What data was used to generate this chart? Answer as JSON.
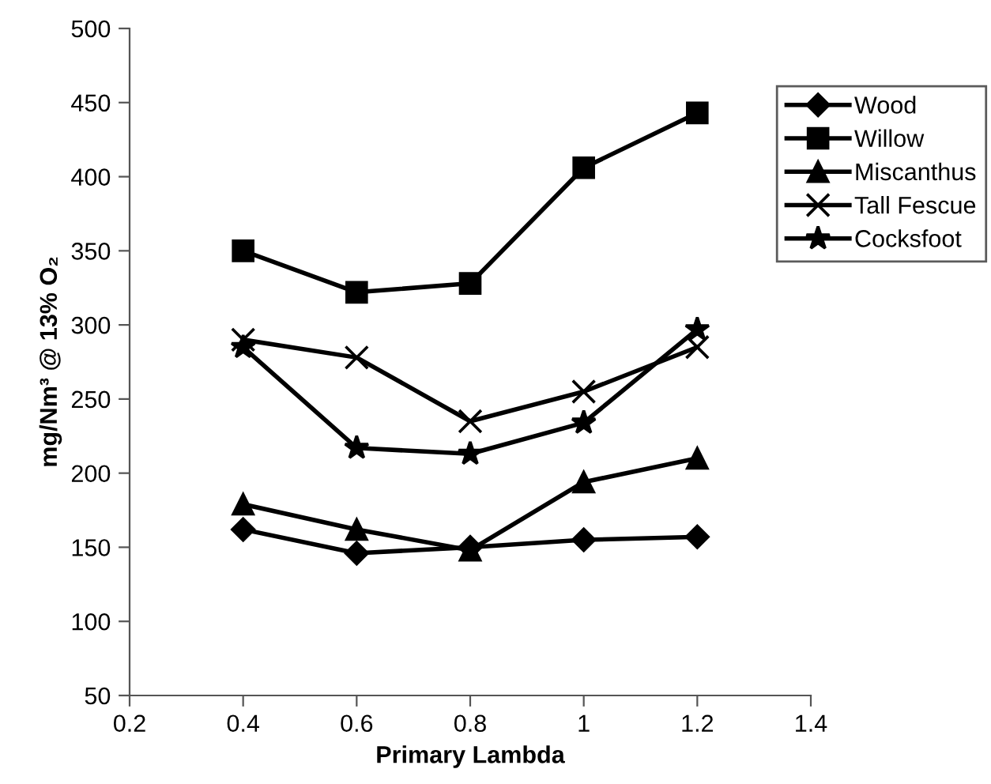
{
  "chart_data": {
    "type": "line",
    "xlabel": "Primary Lambda",
    "ylabel": "mg/Nm³ @ 13% O₂",
    "x": [
      0.4,
      0.6,
      0.8,
      1.0,
      1.2
    ],
    "series": [
      {
        "name": "Wood",
        "color": "#000000",
        "marker": "diamond",
        "values": [
          162,
          146,
          150,
          155,
          157
        ]
      },
      {
        "name": "Willow",
        "color": "#000000",
        "marker": "square",
        "values": [
          350,
          322,
          328,
          406,
          443
        ]
      },
      {
        "name": "Miscanthus",
        "color": "#000000",
        "marker": "triangle",
        "values": [
          179,
          162,
          148,
          194,
          210
        ]
      },
      {
        "name": "Tall Fescue",
        "color": "#000000",
        "marker": "cross",
        "values": [
          290,
          278,
          235,
          255,
          285
        ]
      },
      {
        "name": "Cocksfoot",
        "color": "#000000",
        "marker": "star",
        "values": [
          285,
          217,
          213,
          234,
          297
        ]
      }
    ],
    "xlim": [
      0.2,
      1.4
    ],
    "xticks": [
      0.2,
      0.4,
      0.6,
      0.8,
      {
        "value": 1.0,
        "label": "1"
      },
      1.2,
      1.4
    ],
    "ylim": [
      50,
      500
    ],
    "yticks": [
      50,
      100,
      150,
      200,
      250,
      300,
      350,
      400,
      450,
      500
    ],
    "grid": false,
    "legend": "top right",
    "line_style": "solid"
  }
}
